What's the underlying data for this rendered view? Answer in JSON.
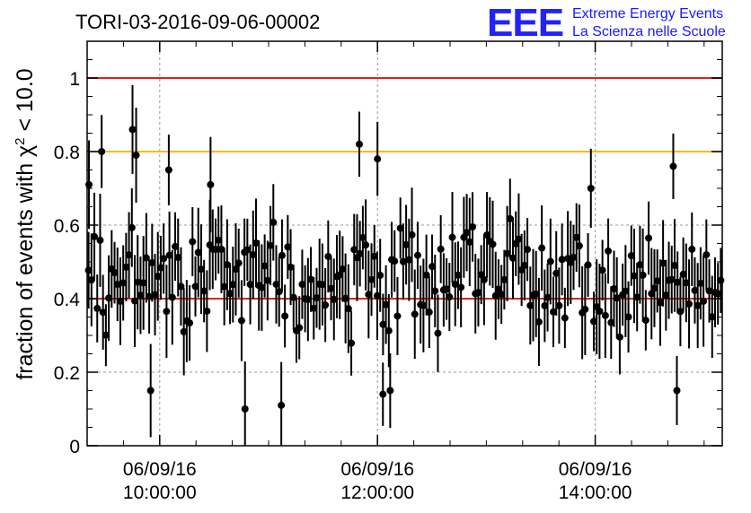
{
  "chart_data": {
    "type": "scatter",
    "title": "TORI-03-2016-09-06-00002",
    "ylabel": "fraction of events with χ² < 10.0",
    "ylabel_parts": {
      "prefix": "fraction of events with ",
      "symbol": "χ",
      "superscript": "2",
      "suffix": " < 10.0"
    },
    "xlim": [
      "2016-09-06T09:20:00",
      "2016-09-06T15:10:00"
    ],
    "ylim": [
      0,
      1.1
    ],
    "y_ticks": [
      {
        "value": 0,
        "label": "0"
      },
      {
        "value": 0.2,
        "label": "0.2"
      },
      {
        "value": 0.4,
        "label": "0.4"
      },
      {
        "value": 0.6,
        "label": "0.6"
      },
      {
        "value": 0.8,
        "label": "0.8"
      },
      {
        "value": 1,
        "label": "1"
      }
    ],
    "x_ticks": [
      {
        "value": "2016-09-06T10:00:00",
        "date": "06/09/16",
        "time": "10:00:00"
      },
      {
        "value": "2016-09-06T12:00:00",
        "date": "06/09/16",
        "time": "12:00:00"
      },
      {
        "value": "2016-09-06T14:00:00",
        "date": "06/09/16",
        "time": "14:00:00"
      }
    ],
    "grid": true,
    "reference_lines": [
      {
        "y": 1.0,
        "color": "#e02020"
      },
      {
        "y": 0.8,
        "color": "#ffb800"
      },
      {
        "y": 0.4,
        "color": "#e02020"
      }
    ],
    "series": [
      {
        "start": "2016-09-06T09:20:00",
        "end": "2016-09-06T15:10:00",
        "n_points": 220,
        "mean": 0.455,
        "spread": 0.1,
        "error_bar": 0.1,
        "marker_color": "#000000",
        "notable_points": [
          {
            "x": "2016-09-06T09:21:00",
            "y": 0.71
          },
          {
            "x": "2016-09-06T09:28:00",
            "y": 0.8
          },
          {
            "x": "2016-09-06T09:45:00",
            "y": 0.86
          },
          {
            "x": "2016-09-06T09:47:00",
            "y": 0.79
          },
          {
            "x": "2016-09-06T09:55:00",
            "y": 0.15
          },
          {
            "x": "2016-09-06T10:05:00",
            "y": 0.75
          },
          {
            "x": "2016-09-06T10:28:00",
            "y": 0.71
          },
          {
            "x": "2016-09-06T10:47:00",
            "y": 0.1
          },
          {
            "x": "2016-09-06T11:07:00",
            "y": 0.11
          },
          {
            "x": "2016-09-06T11:50:00",
            "y": 0.82
          },
          {
            "x": "2016-09-06T12:00:00",
            "y": 0.78
          },
          {
            "x": "2016-09-06T12:03:00",
            "y": 0.14
          },
          {
            "x": "2016-09-06T12:07:00",
            "y": 0.15
          },
          {
            "x": "2016-09-06T14:43:00",
            "y": 0.76
          },
          {
            "x": "2016-09-06T14:45:00",
            "y": 0.15
          }
        ]
      }
    ]
  },
  "logo": {
    "mark": "EEE",
    "line1": "Extreme Energy Events",
    "line2": "La Scienza nelle Scuole",
    "color": "#1a1aff"
  }
}
